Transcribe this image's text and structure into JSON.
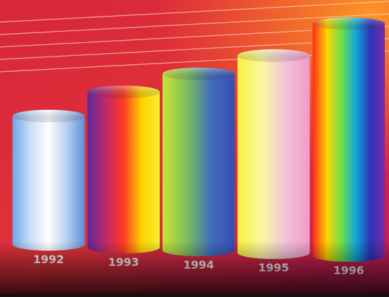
{
  "chart_data": {
    "type": "bar",
    "style": "3d-cylinder",
    "categories": [
      "1992",
      "1993",
      "1994",
      "1995",
      "1996"
    ],
    "values": [
      2.0,
      2.4,
      2.7,
      3.0,
      3.5
    ],
    "title": "",
    "xlabel": "",
    "ylabel": "",
    "ylim": [
      0,
      3.8
    ],
    "grid": true,
    "legend": "none",
    "value_labels": false
  },
  "colors": {
    "background_top": "#d8263a",
    "background_bottom": "#c01a58",
    "background_right_top": "#ff8a1e",
    "gridline": "#f7d2c4",
    "label_text": "#ffffff",
    "bar_1992": [
      "#6fa6e6",
      "#c9def8",
      "#ffffff",
      "#b7d0f2",
      "#5e8fd6"
    ],
    "bar_1993": [
      "#5b2a9b",
      "#c0286a",
      "#ff3a22",
      "#ffd200",
      "#f2f030"
    ],
    "bar_1994": [
      "#c9e334",
      "#7fc05a",
      "#3f6fbf",
      "#3a4bb0"
    ],
    "bar_1995": [
      "#f6f23a",
      "#fbf7a2",
      "#f2c2dc",
      "#f39ac4"
    ],
    "bar_1996": [
      "#ff2a1e",
      "#ffd400",
      "#6fe04a",
      "#12a7d8",
      "#2b34b8",
      "#7a2aa6"
    ]
  }
}
